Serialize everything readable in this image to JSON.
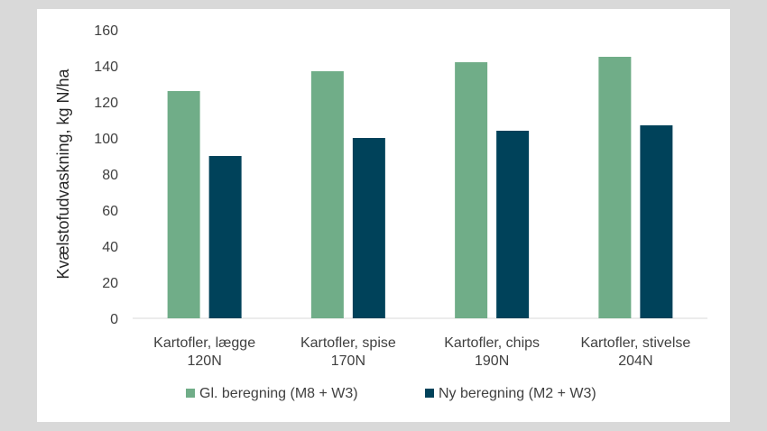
{
  "chart_data": {
    "type": "bar",
    "categories": [
      [
        "Kartofler, lægge",
        "120N"
      ],
      [
        "Kartofler, spise",
        "170N"
      ],
      [
        "Kartofler, chips",
        "190N"
      ],
      [
        "Kartofler, stivelse",
        "204N"
      ]
    ],
    "series": [
      {
        "name": "Gl. beregning (M8 + W3)",
        "values": [
          126,
          137,
          142,
          145
        ],
        "color": "#70ad88"
      },
      {
        "name": "Ny beregning (M2 + W3)",
        "values": [
          90,
          100,
          104,
          107
        ],
        "color": "#00425a"
      }
    ],
    "ylabel": "Kvælstofudvaskning, kg N/ha",
    "xlabel": "",
    "ylim": [
      0,
      160
    ],
    "yticks": [
      0,
      20,
      40,
      60,
      80,
      100,
      120,
      140,
      160
    ],
    "grid": false,
    "legend": "bottom"
  }
}
